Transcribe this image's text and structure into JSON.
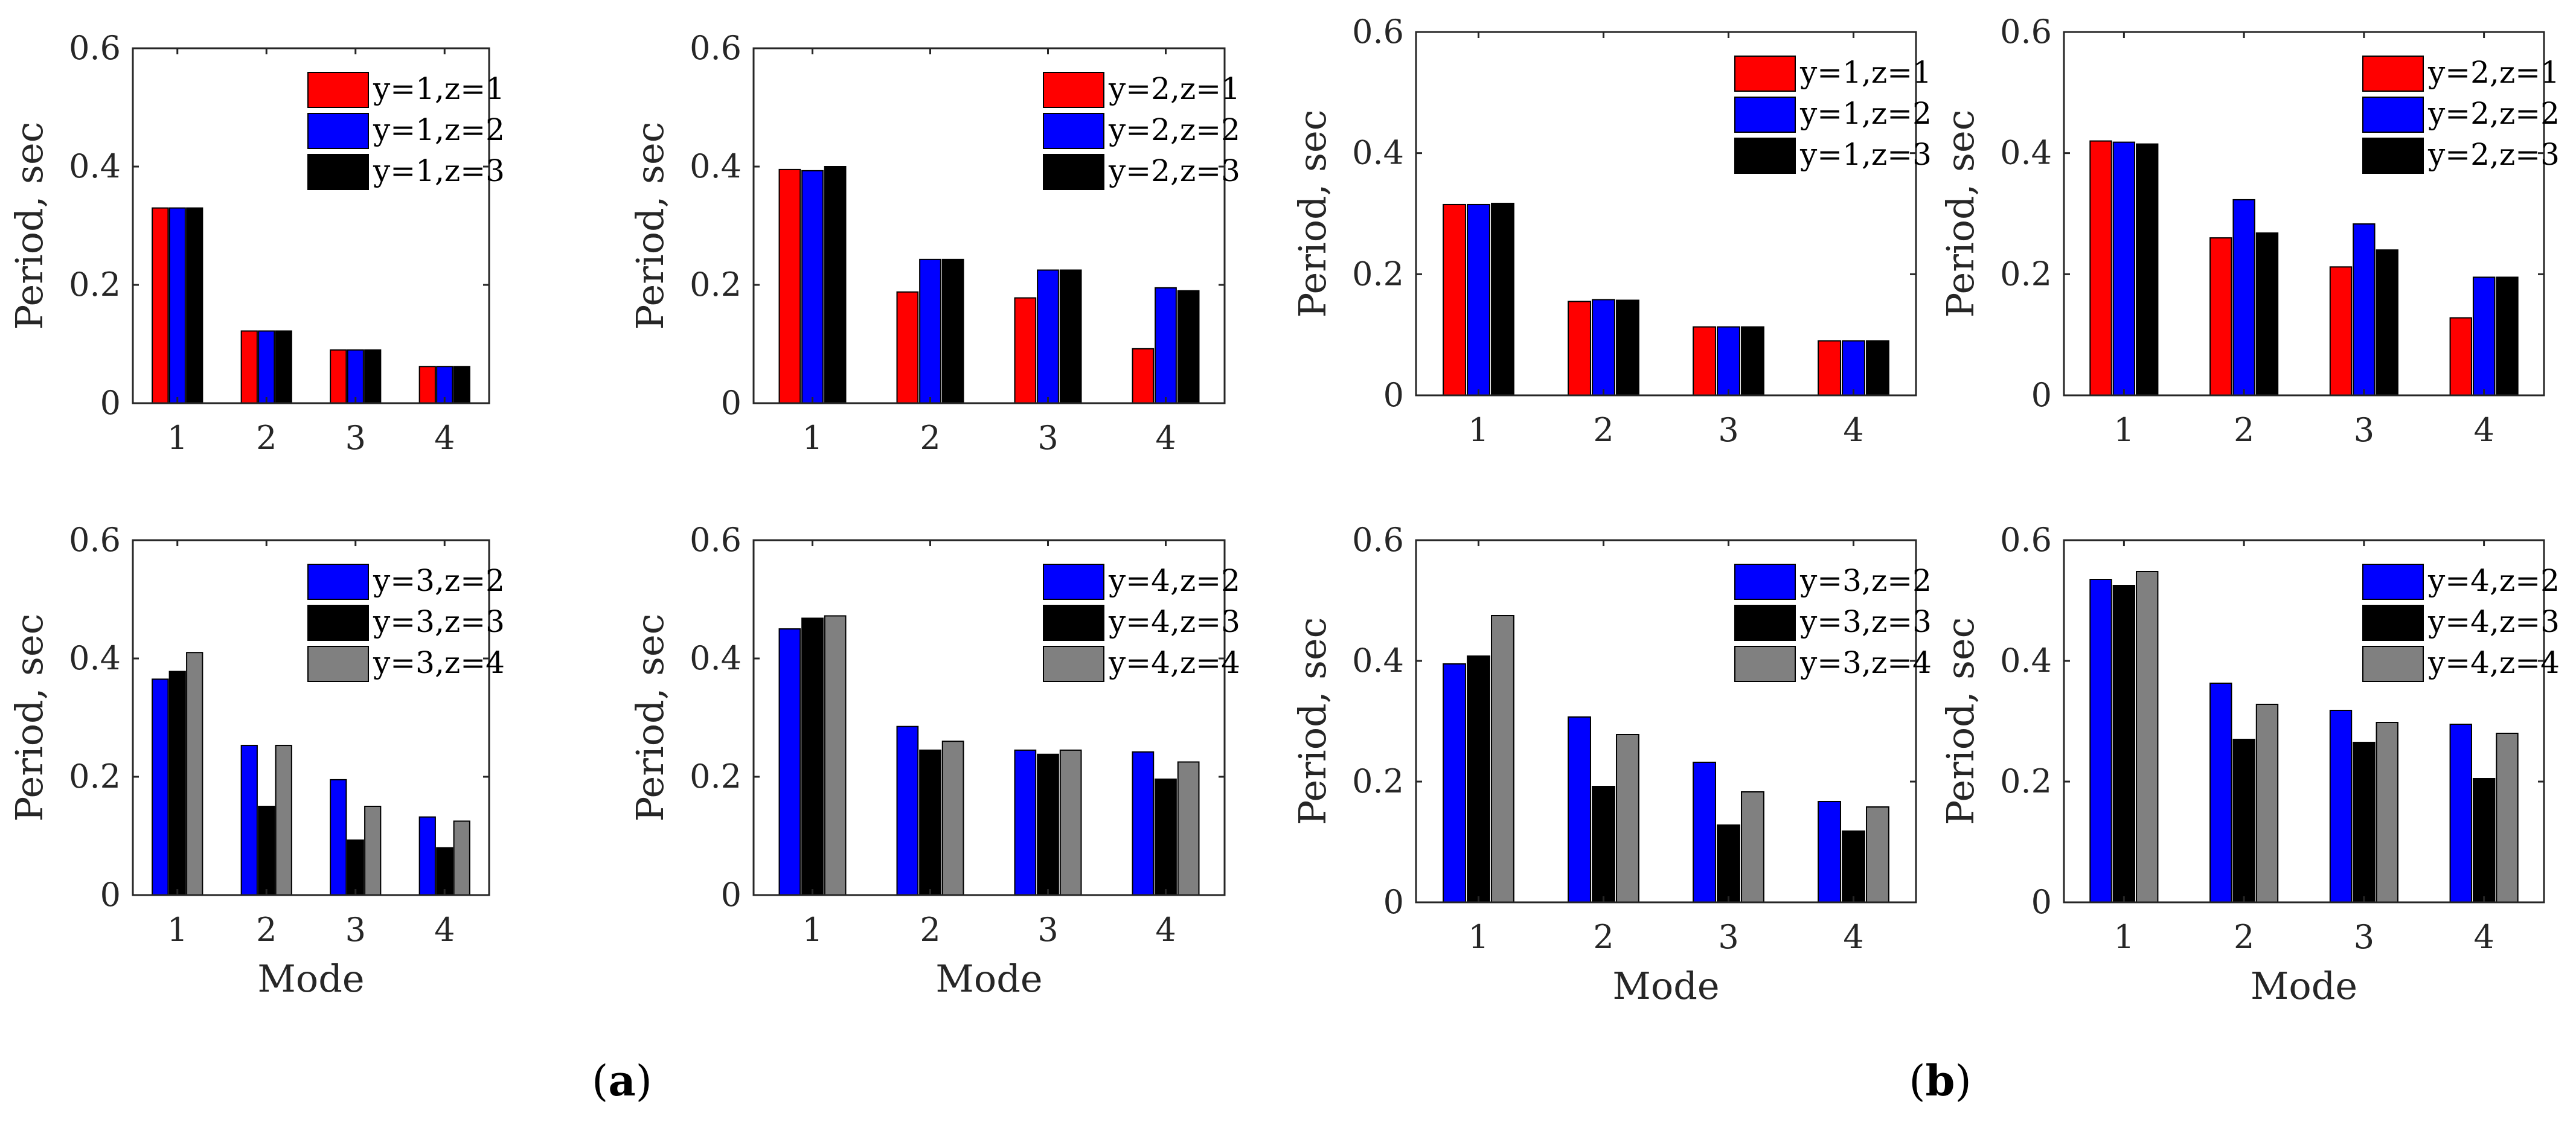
{
  "colors": {
    "series_red": "#ff0000",
    "series_blue": "#0000ff",
    "series_black": "#000000",
    "series_gray": "#808080",
    "axis": "#262626"
  },
  "panel_labels": {
    "a": "a",
    "b": "b"
  },
  "chart_data": [
    {
      "type": "bar",
      "group": "a",
      "row": 0,
      "col": 0,
      "categories": [
        "1",
        "2",
        "3",
        "4"
      ],
      "ylim": [
        0,
        0.6
      ],
      "yticks": [
        "0",
        "0.2",
        "0.4",
        "0.6"
      ],
      "xlabel": "",
      "ylabel": "Period, sec",
      "legend_position": "top-right",
      "grid": false,
      "series": [
        {
          "name": "y=1,z=1",
          "color": "#ff0000",
          "values": [
            0.33,
            0.122,
            0.09,
            0.062
          ]
        },
        {
          "name": "y=1,z=2",
          "color": "#0000ff",
          "values": [
            0.33,
            0.122,
            0.09,
            0.062
          ]
        },
        {
          "name": "y=1,z=3",
          "color": "#000000",
          "values": [
            0.33,
            0.122,
            0.09,
            0.062
          ]
        }
      ]
    },
    {
      "type": "bar",
      "group": "a",
      "row": 0,
      "col": 1,
      "categories": [
        "1",
        "2",
        "3",
        "4"
      ],
      "ylim": [
        0,
        0.6
      ],
      "yticks": [
        "0",
        "0.2",
        "0.4",
        "0.6"
      ],
      "xlabel": "",
      "ylabel": "Period, sec",
      "legend_position": "top-right",
      "grid": false,
      "series": [
        {
          "name": "y=2,z=1",
          "color": "#ff0000",
          "values": [
            0.395,
            0.188,
            0.178,
            0.092
          ]
        },
        {
          "name": "y=2,z=2",
          "color": "#0000ff",
          "values": [
            0.393,
            0.243,
            0.225,
            0.195
          ]
        },
        {
          "name": "y=2,z=3",
          "color": "#000000",
          "values": [
            0.4,
            0.243,
            0.225,
            0.19
          ]
        }
      ]
    },
    {
      "type": "bar",
      "group": "a",
      "row": 1,
      "col": 0,
      "categories": [
        "1",
        "2",
        "3",
        "4"
      ],
      "ylim": [
        0,
        0.6
      ],
      "yticks": [
        "0",
        "0.2",
        "0.4",
        "0.6"
      ],
      "xlabel": "Mode",
      "ylabel": "Period, sec",
      "legend_position": "top-right",
      "grid": false,
      "series": [
        {
          "name": "y=3,z=2",
          "color": "#0000ff",
          "values": [
            0.365,
            0.253,
            0.195,
            0.132
          ]
        },
        {
          "name": "y=3,z=3",
          "color": "#000000",
          "values": [
            0.378,
            0.15,
            0.093,
            0.08
          ]
        },
        {
          "name": "y=3,z=4",
          "color": "#808080",
          "values": [
            0.41,
            0.253,
            0.15,
            0.125
          ]
        }
      ]
    },
    {
      "type": "bar",
      "group": "a",
      "row": 1,
      "col": 1,
      "categories": [
        "1",
        "2",
        "3",
        "4"
      ],
      "ylim": [
        0,
        0.6
      ],
      "yticks": [
        "0",
        "0.2",
        "0.4",
        "0.6"
      ],
      "xlabel": "Mode",
      "ylabel": "Period, sec",
      "legend_position": "top-right",
      "grid": false,
      "series": [
        {
          "name": "y=4,z=2",
          "color": "#0000ff",
          "values": [
            0.45,
            0.285,
            0.245,
            0.242
          ]
        },
        {
          "name": "y=4,z=3",
          "color": "#000000",
          "values": [
            0.468,
            0.245,
            0.238,
            0.196
          ]
        },
        {
          "name": "y=4,z=4",
          "color": "#808080",
          "values": [
            0.472,
            0.26,
            0.245,
            0.225
          ]
        }
      ]
    },
    {
      "type": "bar",
      "group": "b",
      "row": 0,
      "col": 0,
      "categories": [
        "1",
        "2",
        "3",
        "4"
      ],
      "ylim": [
        0,
        0.6
      ],
      "yticks": [
        "0",
        "0.2",
        "0.4",
        "0.6"
      ],
      "xlabel": "",
      "ylabel": "Period, sec",
      "legend_position": "top-right",
      "grid": false,
      "series": [
        {
          "name": "y=1,z=1",
          "color": "#ff0000",
          "values": [
            0.315,
            0.155,
            0.113,
            0.09
          ]
        },
        {
          "name": "y=1,z=2",
          "color": "#0000ff",
          "values": [
            0.315,
            0.158,
            0.113,
            0.09
          ]
        },
        {
          "name": "y=1,z=3",
          "color": "#000000",
          "values": [
            0.317,
            0.157,
            0.113,
            0.09
          ]
        }
      ]
    },
    {
      "type": "bar",
      "group": "b",
      "row": 0,
      "col": 1,
      "categories": [
        "1",
        "2",
        "3",
        "4"
      ],
      "ylim": [
        0,
        0.6
      ],
      "yticks": [
        "0",
        "0.2",
        "0.4",
        "0.6"
      ],
      "xlabel": "",
      "ylabel": "Period, sec",
      "legend_position": "top-right",
      "grid": false,
      "series": [
        {
          "name": "y=2,z=1",
          "color": "#ff0000",
          "values": [
            0.42,
            0.26,
            0.212,
            0.128
          ]
        },
        {
          "name": "y=2,z=2",
          "color": "#0000ff",
          "values": [
            0.418,
            0.323,
            0.283,
            0.195
          ]
        },
        {
          "name": "y=2,z=3",
          "color": "#000000",
          "values": [
            0.415,
            0.268,
            0.24,
            0.195
          ]
        }
      ]
    },
    {
      "type": "bar",
      "group": "b",
      "row": 1,
      "col": 0,
      "categories": [
        "1",
        "2",
        "3",
        "4"
      ],
      "ylim": [
        0,
        0.6
      ],
      "yticks": [
        "0",
        "0.2",
        "0.4",
        "0.6"
      ],
      "xlabel": "Mode",
      "ylabel": "Period, sec",
      "legend_position": "top-right",
      "grid": false,
      "series": [
        {
          "name": "y=3,z=2",
          "color": "#0000ff",
          "values": [
            0.395,
            0.307,
            0.232,
            0.167
          ]
        },
        {
          "name": "y=3,z=3",
          "color": "#000000",
          "values": [
            0.408,
            0.192,
            0.128,
            0.118
          ]
        },
        {
          "name": "y=3,z=4",
          "color": "#808080",
          "values": [
            0.475,
            0.278,
            0.183,
            0.158
          ]
        }
      ]
    },
    {
      "type": "bar",
      "group": "b",
      "row": 1,
      "col": 1,
      "categories": [
        "1",
        "2",
        "3",
        "4"
      ],
      "ylim": [
        0,
        0.6
      ],
      "yticks": [
        "0",
        "0.2",
        "0.4",
        "0.6"
      ],
      "xlabel": "Mode",
      "ylabel": "Period, sec",
      "legend_position": "top-right",
      "grid": false,
      "series": [
        {
          "name": "y=4,z=2",
          "color": "#0000ff",
          "values": [
            0.535,
            0.363,
            0.318,
            0.295
          ]
        },
        {
          "name": "y=4,z=3",
          "color": "#000000",
          "values": [
            0.525,
            0.27,
            0.265,
            0.205
          ]
        },
        {
          "name": "y=4,z=4",
          "color": "#808080",
          "values": [
            0.548,
            0.328,
            0.298,
            0.28
          ]
        }
      ]
    }
  ]
}
